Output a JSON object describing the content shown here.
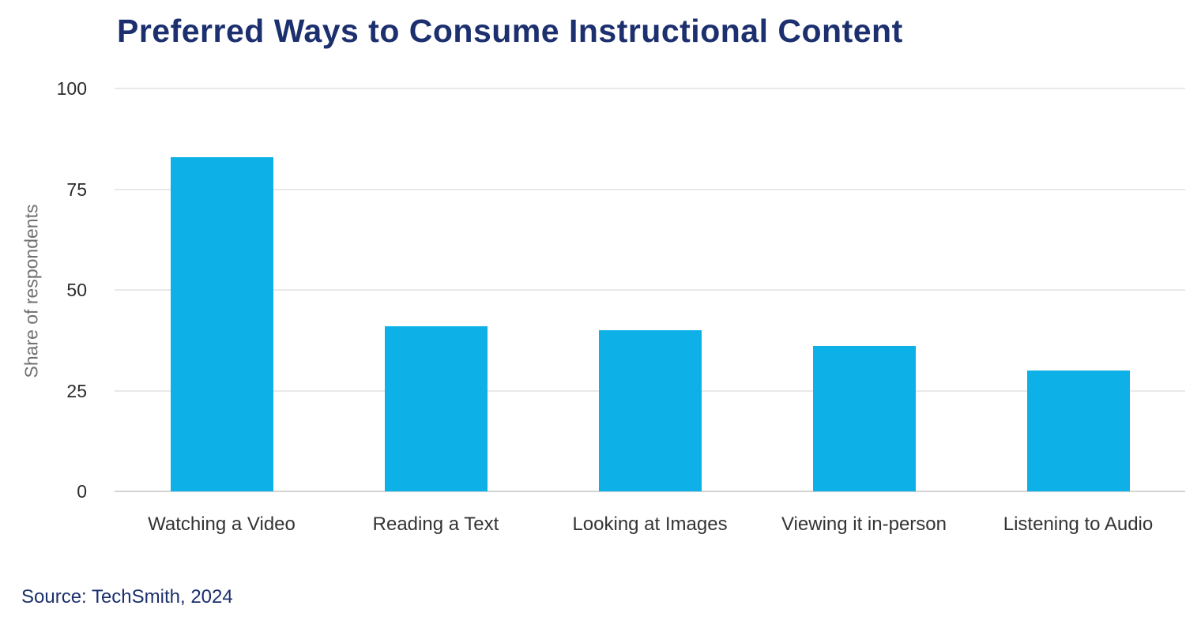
{
  "chart_data": {
    "type": "bar",
    "title": "Preferred Ways to Consume Instructional Content",
    "categories": [
      "Watching a Video",
      "Reading a Text",
      "Looking at Images",
      "Viewing it in-person",
      "Listening to Audio"
    ],
    "values": [
      83,
      41,
      40,
      36,
      30
    ],
    "xlabel": "",
    "ylabel": "Share of respondents",
    "ylim": [
      0,
      100
    ],
    "yticks": [
      0,
      25,
      50,
      75,
      100
    ],
    "grid": true,
    "legend": false,
    "bar_color": "#0DB1E7"
  },
  "footer": {
    "source": "Source: TechSmith, 2024"
  },
  "colors": {
    "background": "#FFFFFF",
    "title": "#1C2F6E",
    "bar": "#0DB1E7",
    "gridline": "#E9E9E9",
    "axis_line": "#D4D4D4",
    "tick_text": "#2B2B2B",
    "category_text": "#333333",
    "ylabel_text": "#707070"
  }
}
